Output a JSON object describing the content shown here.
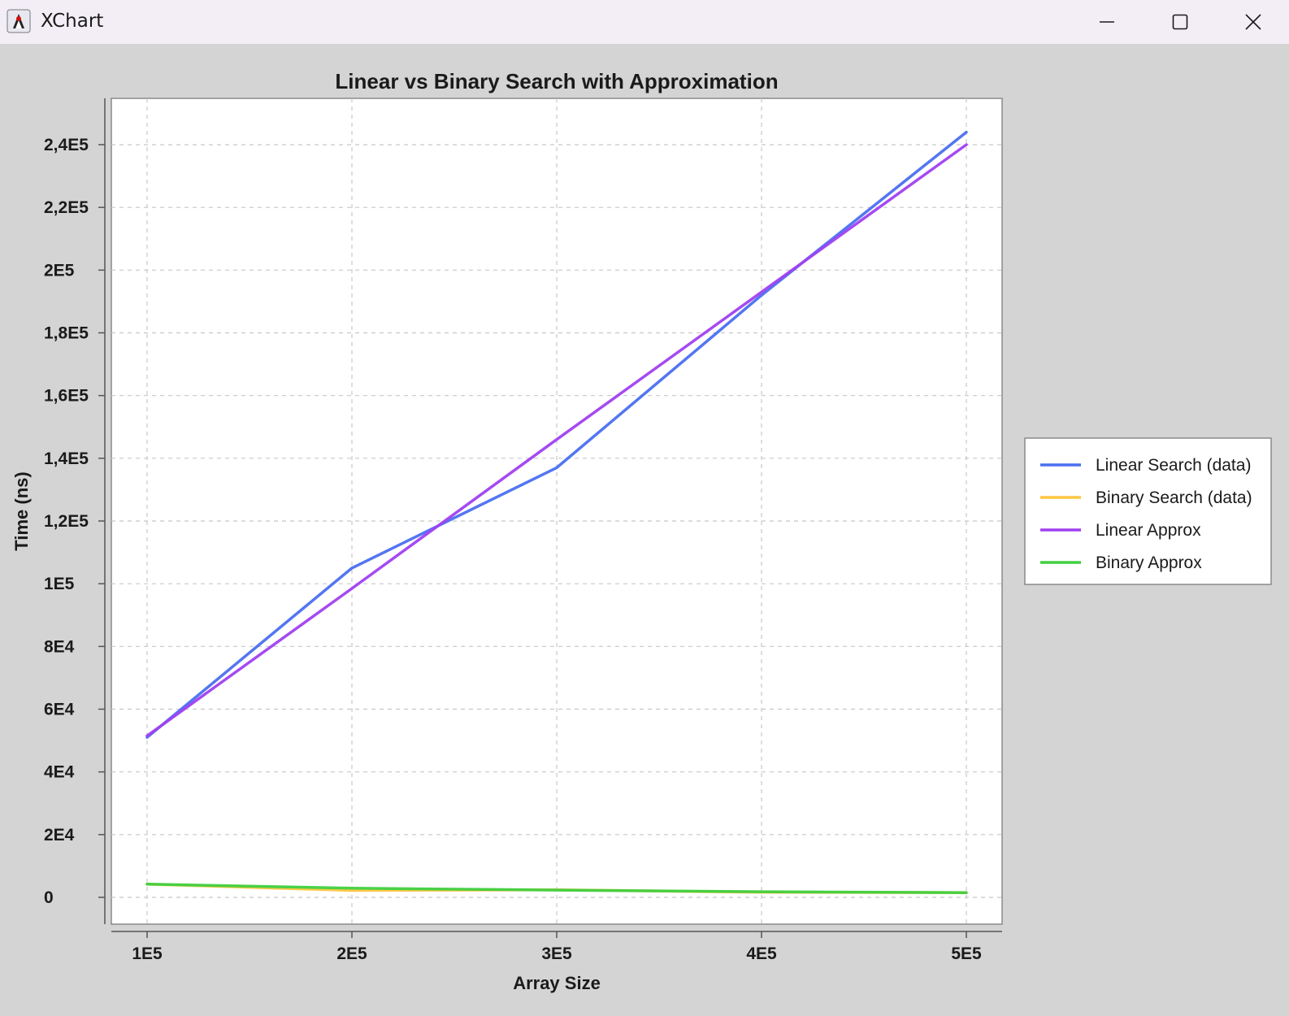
{
  "window": {
    "title": "XChart",
    "icon": "java-duke-icon",
    "controls": {
      "minimize": "minimize-icon",
      "maximize": "maximize-icon",
      "close": "close-icon"
    }
  },
  "colors": {
    "background": "#d4d4d4",
    "plot_background": "#ffffff",
    "linear_data": "#4a6ff0",
    "binary_data": "#ffc640",
    "linear_approx": "#a040f0",
    "binary_approx": "#40d040"
  },
  "chart_data": {
    "type": "line",
    "title": "Linear vs Binary Search with Approximation",
    "xlabel": "Array Size",
    "ylabel": "Time (ns)",
    "xlim": [
      100000,
      500000
    ],
    "ylim": [
      0,
      250000
    ],
    "x_ticks": [
      {
        "value": 100000,
        "label": "1E5"
      },
      {
        "value": 200000,
        "label": "2E5"
      },
      {
        "value": 300000,
        "label": "3E5"
      },
      {
        "value": 400000,
        "label": "4E5"
      },
      {
        "value": 500000,
        "label": "5E5"
      }
    ],
    "y_ticks": [
      {
        "value": 0,
        "label": "0"
      },
      {
        "value": 20000,
        "label": "2E4"
      },
      {
        "value": 40000,
        "label": "4E4"
      },
      {
        "value": 60000,
        "label": "6E4"
      },
      {
        "value": 80000,
        "label": "8E4"
      },
      {
        "value": 100000,
        "label": "1E5"
      },
      {
        "value": 120000,
        "label": "1,2E5"
      },
      {
        "value": 140000,
        "label": "1,4E5"
      },
      {
        "value": 160000,
        "label": "1,6E5"
      },
      {
        "value": 180000,
        "label": "1,8E5"
      },
      {
        "value": 200000,
        "label": "2E5"
      },
      {
        "value": 220000,
        "label": "2,2E5"
      },
      {
        "value": 240000,
        "label": "2,4E5"
      }
    ],
    "grid": true,
    "legend_position": "right",
    "series": [
      {
        "name": "Linear Search (data)",
        "color": "#4a6ff0",
        "x": [
          100000,
          200000,
          300000,
          400000,
          500000
        ],
        "y": [
          51000,
          105000,
          137000,
          192000,
          244000
        ]
      },
      {
        "name": "Binary Search (data)",
        "color": "#ffc640",
        "x": [
          100000,
          200000,
          300000,
          400000,
          500000
        ],
        "y": [
          4200,
          2200,
          2400,
          1600,
          1500
        ]
      },
      {
        "name": "Linear Approx",
        "color": "#a040f0",
        "x": [
          100000,
          200000,
          300000,
          400000,
          500000
        ],
        "y": [
          51500,
          98500,
          146000,
          193000,
          240000
        ]
      },
      {
        "name": "Binary Approx",
        "color": "#40d040",
        "x": [
          100000,
          200000,
          300000,
          400000,
          500000
        ],
        "y": [
          4200,
          2900,
          2300,
          1800,
          1500
        ]
      }
    ]
  }
}
